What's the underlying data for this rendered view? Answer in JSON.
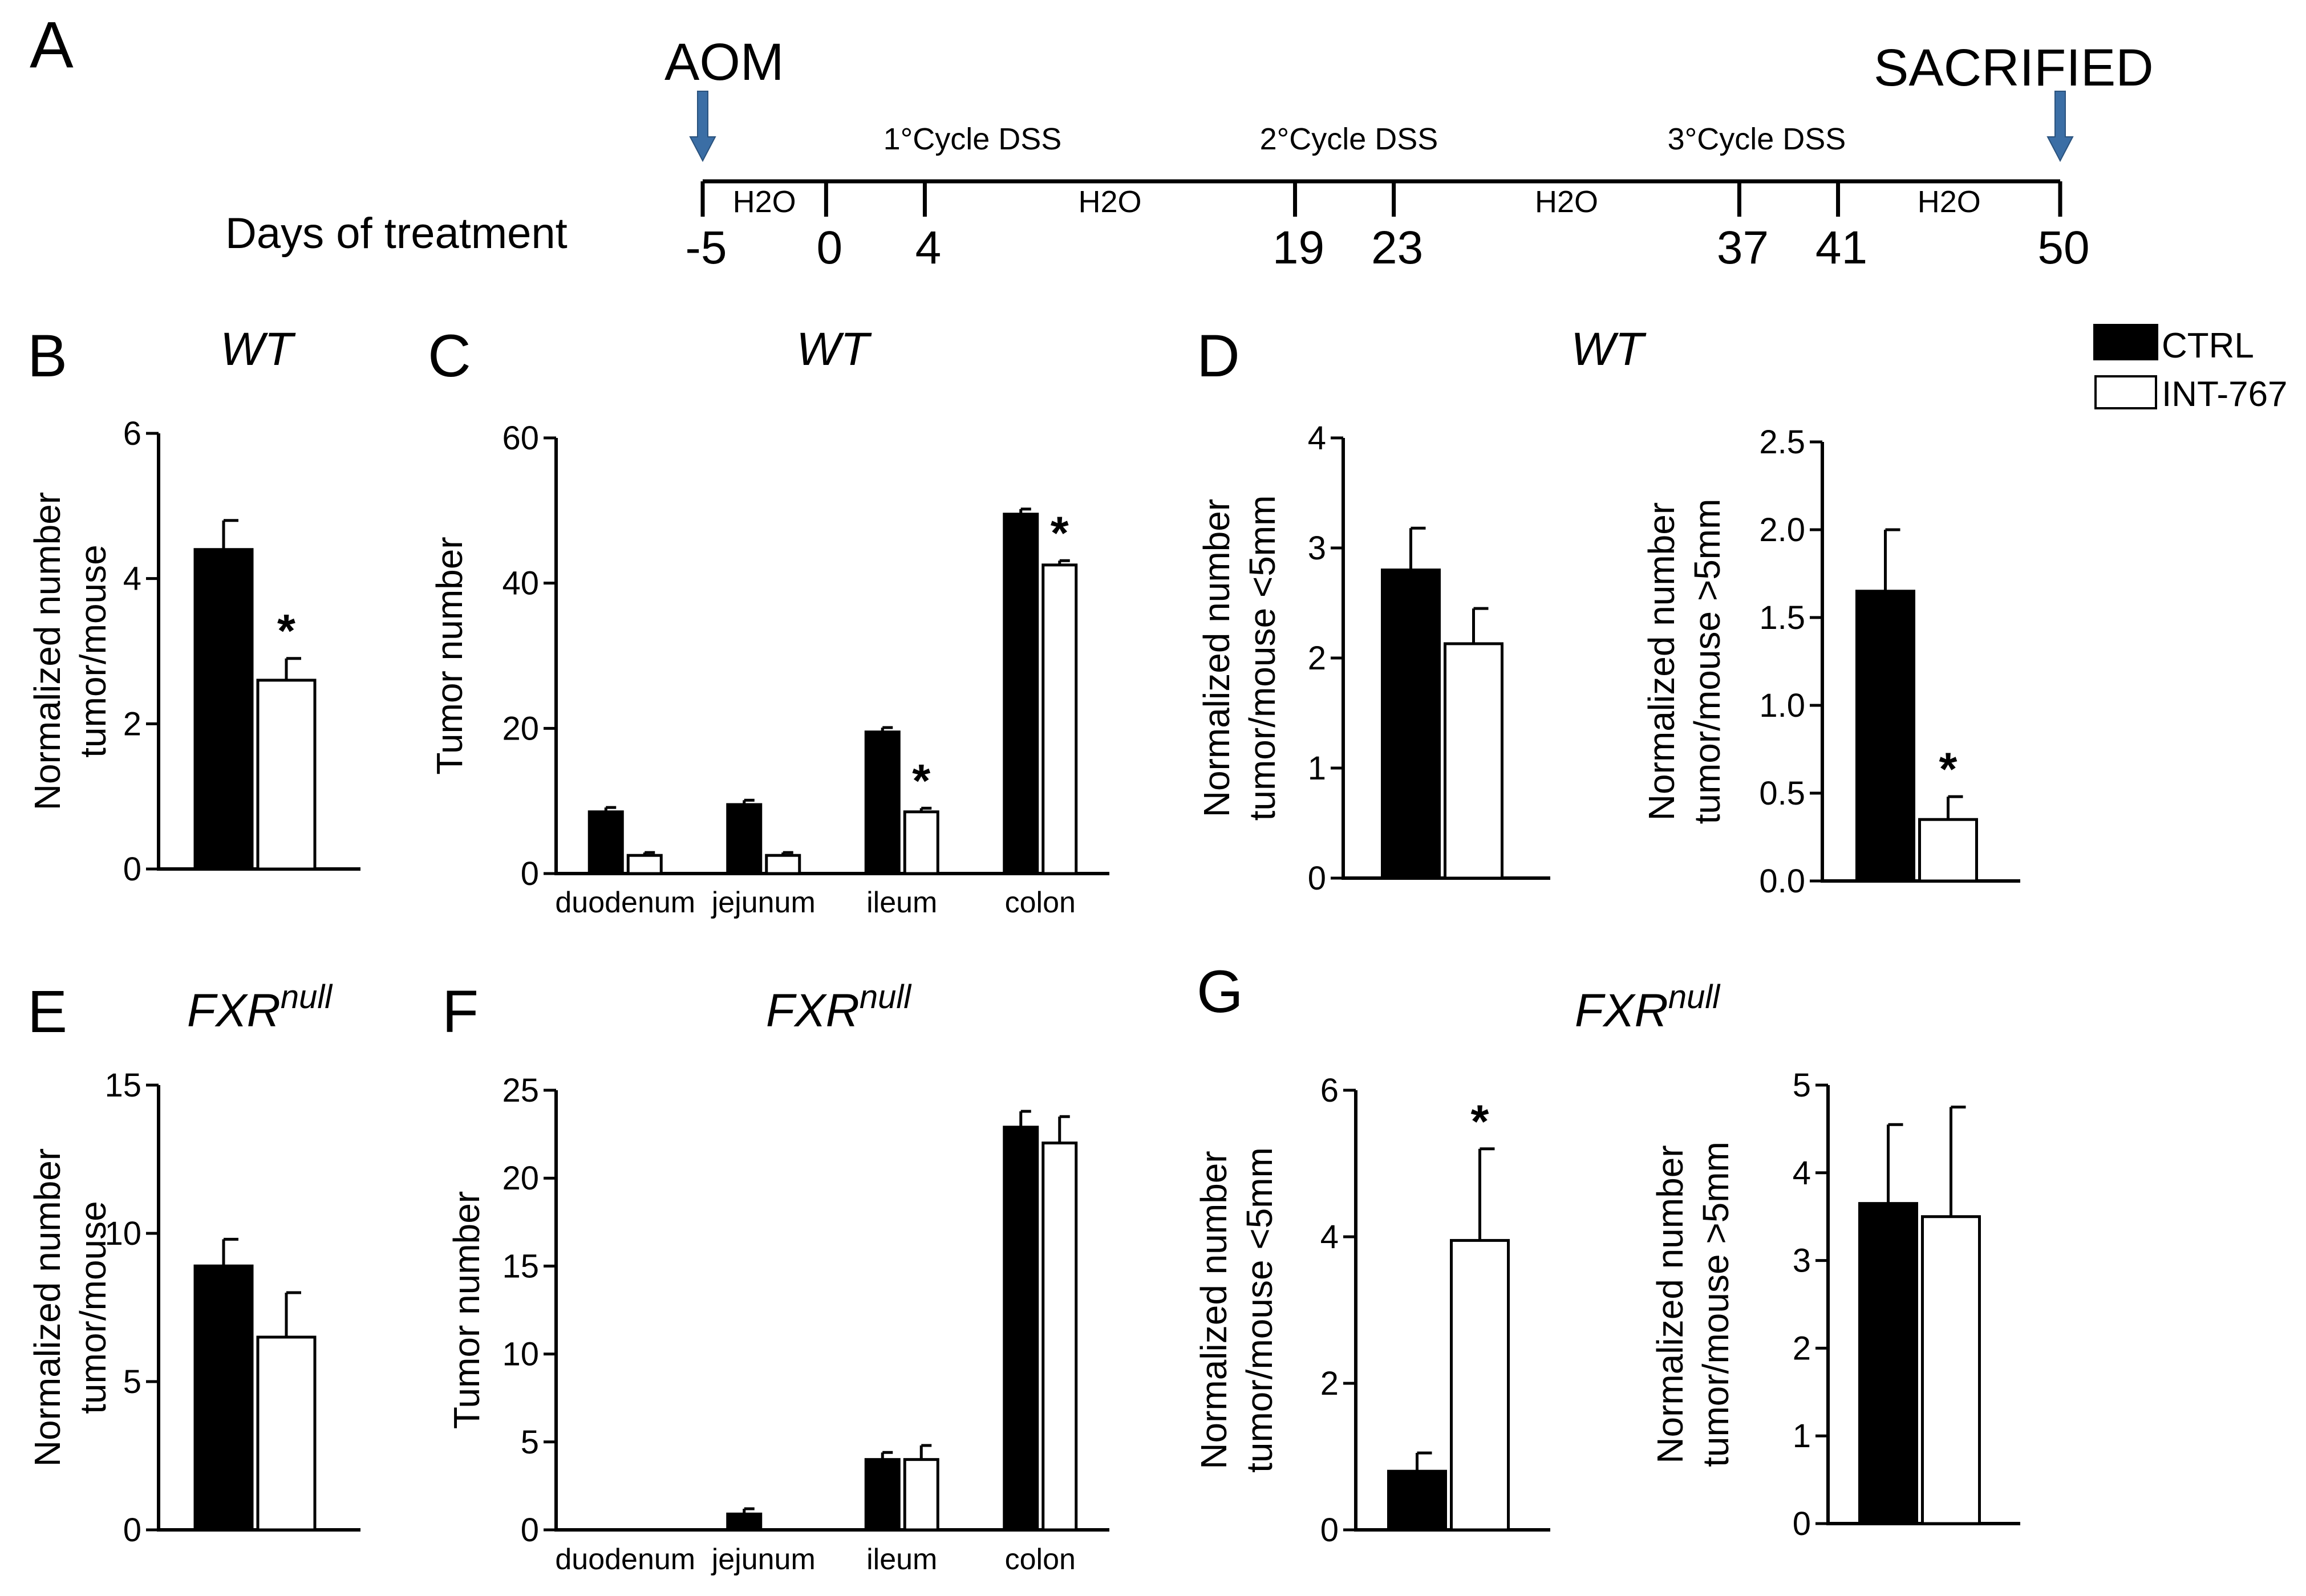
{
  "figure": {
    "panel_letters": [
      "A",
      "B",
      "C",
      "D",
      "E",
      "F",
      "G"
    ],
    "colors": {
      "ctrl": "#000000",
      "int": "#ffffff",
      "arrow": "#3b6ea5"
    }
  },
  "timeline": {
    "label": "Days of treatment",
    "start_event": "AOM",
    "end_event": "SACRIFIED",
    "days": [
      -5,
      0,
      4,
      19,
      23,
      37,
      41,
      50
    ],
    "day_labels": [
      "-5",
      "0",
      "4",
      "19",
      "23",
      "37",
      "41",
      "50"
    ],
    "h2o_label": "H2O",
    "cycles": [
      "1°Cycle DSS",
      "2°Cycle DSS",
      "3°Cycle DSS"
    ]
  },
  "legend": {
    "items": [
      "CTRL",
      "INT-767"
    ]
  },
  "chart_data": [
    {
      "panel": "B",
      "type": "bar",
      "title": "WT",
      "title_sup": "",
      "ylabel": [
        "Normalized number",
        "tumor/mouse"
      ],
      "ylim": [
        0,
        6
      ],
      "yticks": [
        0,
        2,
        4,
        6
      ],
      "ytick_labels": [
        "0",
        "2",
        "4",
        "6"
      ],
      "categories": [
        ""
      ],
      "series": [
        {
          "name": "CTRL",
          "values": [
            4.4
          ],
          "errors": [
            0.4
          ]
        },
        {
          "name": "INT-767",
          "values": [
            2.6
          ],
          "errors": [
            0.3
          ]
        }
      ],
      "significance": [
        {
          "category": 0,
          "series": 1,
          "mark": "*"
        }
      ]
    },
    {
      "panel": "C",
      "type": "bar",
      "title": "WT",
      "title_sup": "",
      "ylabel": [
        "Tumor number"
      ],
      "ylim": [
        0,
        60
      ],
      "yticks": [
        0,
        20,
        40,
        60
      ],
      "ytick_labels": [
        "0",
        "20",
        "40",
        "60"
      ],
      "categories": [
        "duodenum",
        "jejunum",
        "ileum",
        "colon"
      ],
      "series": [
        {
          "name": "CTRL",
          "values": [
            8.5,
            9.5,
            19.5,
            49.5
          ],
          "errors": [
            0.6,
            0.6,
            0.6,
            0.7
          ]
        },
        {
          "name": "INT-767",
          "values": [
            2.5,
            2.5,
            8.5,
            42.5
          ],
          "errors": [
            0.4,
            0.4,
            0.5,
            0.6
          ]
        }
      ],
      "significance": [
        {
          "category": 2,
          "series": 1,
          "mark": "*"
        },
        {
          "category": 3,
          "series": 1,
          "mark": "*"
        }
      ]
    },
    {
      "panel": "D",
      "type": "bar",
      "title": "WT",
      "title_sup": "",
      "ylabel": [
        "Normalized number",
        "tumor/mouse <5mm"
      ],
      "ylim": [
        0,
        4
      ],
      "yticks": [
        0,
        1,
        2,
        3,
        4
      ],
      "ytick_labels": [
        "0",
        "1",
        "2",
        "3",
        "4"
      ],
      "categories": [
        ""
      ],
      "series": [
        {
          "name": "CTRL",
          "values": [
            2.8
          ],
          "errors": [
            0.38
          ]
        },
        {
          "name": "INT-767",
          "values": [
            2.13
          ],
          "errors": [
            0.32
          ]
        }
      ],
      "significance": []
    },
    {
      "panel": "D",
      "type": "bar",
      "title": "",
      "title_sup": "",
      "ylabel": [
        "Normalized number",
        "tumor/mouse >5mm"
      ],
      "ylim": [
        0,
        2.5
      ],
      "yticks": [
        0,
        0.5,
        1.0,
        1.5,
        2.0,
        2.5
      ],
      "ytick_labels": [
        "0.0",
        "0.5",
        "1.0",
        "1.5",
        "2.0",
        "2.5"
      ],
      "categories": [
        ""
      ],
      "series": [
        {
          "name": "CTRL",
          "values": [
            1.65
          ],
          "errors": [
            0.35
          ]
        },
        {
          "name": "INT-767",
          "values": [
            0.35
          ],
          "errors": [
            0.13
          ]
        }
      ],
      "significance": [
        {
          "category": 0,
          "series": 1,
          "mark": "*"
        }
      ]
    },
    {
      "panel": "E",
      "type": "bar",
      "title": "FXR",
      "title_sup": "null",
      "ylabel": [
        "Normalized number",
        "tumor/mouse"
      ],
      "ylim": [
        0,
        15
      ],
      "yticks": [
        0,
        5,
        10,
        15
      ],
      "ytick_labels": [
        "0",
        "5",
        "10",
        "15"
      ],
      "categories": [
        ""
      ],
      "series": [
        {
          "name": "CTRL",
          "values": [
            8.9
          ],
          "errors": [
            0.9
          ]
        },
        {
          "name": "INT-767",
          "values": [
            6.5
          ],
          "errors": [
            1.5
          ]
        }
      ],
      "significance": []
    },
    {
      "panel": "F",
      "type": "bar",
      "title": "FXR",
      "title_sup": "null",
      "ylabel": [
        "Tumor number"
      ],
      "ylim": [
        0,
        25
      ],
      "yticks": [
        0,
        5,
        10,
        15,
        20,
        25
      ],
      "ytick_labels": [
        "0",
        "5",
        "10",
        "15",
        "20",
        "25"
      ],
      "categories": [
        "duodenum",
        "jejunum",
        "ileum",
        "colon"
      ],
      "series": [
        {
          "name": "CTRL",
          "values": [
            0,
            0.9,
            4.0,
            22.9
          ],
          "errors": [
            0,
            0.3,
            0.4,
            0.9
          ]
        },
        {
          "name": "INT-767",
          "values": [
            0,
            0,
            4.0,
            22.0
          ],
          "errors": [
            0,
            0,
            0.8,
            1.5
          ]
        }
      ],
      "significance": []
    },
    {
      "panel": "G",
      "type": "bar",
      "title": "FXR",
      "title_sup": "null",
      "ylabel": [
        "Normalized number",
        "tumor/mouse <5mm"
      ],
      "ylim": [
        0,
        6
      ],
      "yticks": [
        0,
        2,
        4,
        6
      ],
      "ytick_labels": [
        "0",
        "2",
        "4",
        "6"
      ],
      "categories": [
        ""
      ],
      "series": [
        {
          "name": "CTRL",
          "values": [
            0.8
          ],
          "errors": [
            0.25
          ]
        },
        {
          "name": "INT-767",
          "values": [
            3.95
          ],
          "errors": [
            1.25
          ]
        }
      ],
      "significance": [
        {
          "category": 0,
          "series": 1,
          "mark": "*"
        }
      ]
    },
    {
      "panel": "G",
      "type": "bar",
      "title": "",
      "title_sup": "",
      "ylabel": [
        "Normalized number",
        "tumor/mouse >5mm"
      ],
      "ylim": [
        0,
        5
      ],
      "yticks": [
        0,
        1,
        2,
        3,
        4,
        5
      ],
      "ytick_labels": [
        "0",
        "1",
        "2",
        "3",
        "4",
        "5"
      ],
      "categories": [
        ""
      ],
      "series": [
        {
          "name": "CTRL",
          "values": [
            3.65
          ],
          "errors": [
            0.9
          ]
        },
        {
          "name": "INT-767",
          "values": [
            3.5
          ],
          "errors": [
            1.25
          ]
        }
      ],
      "significance": []
    }
  ]
}
